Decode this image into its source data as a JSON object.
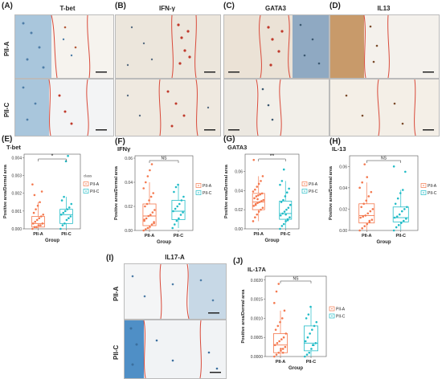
{
  "panels": {
    "A": {
      "letter": "(A)",
      "title": "T-bet"
    },
    "B": {
      "letter": "(B)",
      "title": "IFN-γ"
    },
    "C": {
      "letter": "(C)",
      "title": "GATA3"
    },
    "D": {
      "letter": "(D)",
      "title": "IL13"
    },
    "I": {
      "letter": "(I)",
      "title": "IL17-A"
    }
  },
  "row_labels": {
    "top": "PII-A",
    "bottom": "PII-C"
  },
  "legend_class_title": "class",
  "charts_text": {
    "E": {
      "letter": "(E)",
      "sig": "*"
    },
    "F": {
      "letter": "(F)",
      "sig": "NS"
    },
    "G": {
      "letter": "(G)",
      "sig": "**"
    },
    "H": {
      "letter": "(H)",
      "sig": "NS"
    },
    "J": {
      "letter": "(J)",
      "sig": "NS"
    }
  },
  "colors": {
    "pii_a": "#f4794f",
    "pii_c": "#22bcc7",
    "stain_red": "#d94a3a",
    "tissue_blue": "#7fa8c9",
    "tissue_brown": "#c89a6a"
  },
  "chart_data": [
    {
      "id": "E",
      "type": "box",
      "title": "T-bet",
      "xlabel": "Group",
      "ylabel": "Positive area/Dermal area",
      "categories": [
        "PII-A",
        "PII-C"
      ],
      "ylim": [
        0,
        0.0042
      ],
      "yticks": [
        0.0,
        0.001,
        0.002,
        0.003,
        0.004
      ],
      "ytick_labels": [
        "0.000",
        "0.001",
        "0.002",
        "0.003",
        "0.004"
      ],
      "legend": [
        "PII-A",
        "PII-C"
      ],
      "boxes": [
        {
          "name": "PII-A",
          "q1": 0.0001,
          "median": 0.0003,
          "q3": 0.0007,
          "whisker_low": 0.0,
          "whisker_high": 0.0015,
          "points": [
            0.0,
            0.0001,
            0.0001,
            0.0002,
            0.0002,
            0.0003,
            0.0003,
            0.0004,
            0.0005,
            0.0006,
            0.0007,
            0.0008,
            0.0009,
            0.0011,
            0.0013,
            0.0015,
            0.0021,
            0.0025,
            0.0019,
            0.0001
          ]
        },
        {
          "name": "PII-C",
          "q1": 0.0003,
          "median": 0.0008,
          "q3": 0.0011,
          "whisker_low": 0.0,
          "whisker_high": 0.0018,
          "points": [
            0.0,
            0.0002,
            0.0003,
            0.0005,
            0.0006,
            0.0007,
            0.0008,
            0.0009,
            0.001,
            0.0011,
            0.0012,
            0.0014,
            0.0016,
            0.0018,
            0.0038,
            0.0041
          ]
        }
      ]
    },
    {
      "id": "F",
      "type": "box",
      "title": "IFNγ",
      "xlabel": "Group",
      "ylabel": "Positive area/Dermal area",
      "categories": [
        "PII-A",
        "PII-C"
      ],
      "ylim": [
        0,
        0.062
      ],
      "yticks": [
        0.0,
        0.02,
        0.04,
        0.06
      ],
      "ytick_labels": [
        "0.00",
        "0.02",
        "0.04",
        "0.06"
      ],
      "legend": [
        "PII-A",
        "PII-C"
      ],
      "boxes": [
        {
          "name": "PII-A",
          "q1": 0.004,
          "median": 0.012,
          "q3": 0.022,
          "whisker_low": 0.0,
          "whisker_high": 0.04,
          "points": [
            0.0,
            0.001,
            0.002,
            0.003,
            0.005,
            0.007,
            0.008,
            0.01,
            0.012,
            0.013,
            0.015,
            0.017,
            0.02,
            0.022,
            0.025,
            0.028,
            0.031,
            0.035,
            0.04,
            0.045,
            0.05,
            0.055,
            0.006,
            0.009
          ]
        },
        {
          "name": "PII-C",
          "q1": 0.009,
          "median": 0.016,
          "q3": 0.025,
          "whisker_low": 0.002,
          "whisker_high": 0.038,
          "points": [
            0.002,
            0.005,
            0.008,
            0.01,
            0.013,
            0.015,
            0.016,
            0.018,
            0.02,
            0.022,
            0.025,
            0.028,
            0.032,
            0.036,
            0.038
          ]
        }
      ]
    },
    {
      "id": "G",
      "type": "box",
      "title": "GATA3",
      "xlabel": "Group",
      "ylabel": "Positive area/Dermal area",
      "categories": [
        "PII-A",
        "PII-C"
      ],
      "ylim": [
        0,
        0.078
      ],
      "yticks": [
        0.0,
        0.02,
        0.04,
        0.06
      ],
      "ytick_labels": [
        "0.00",
        "0.02",
        "0.04",
        "0.06"
      ],
      "legend": [
        "PII-A",
        "PII-C"
      ],
      "boxes": [
        {
          "name": "PII-A",
          "q1": 0.02,
          "median": 0.028,
          "q3": 0.037,
          "whisker_low": 0.008,
          "whisker_high": 0.055,
          "points": [
            0.008,
            0.012,
            0.015,
            0.018,
            0.02,
            0.022,
            0.024,
            0.026,
            0.027,
            0.028,
            0.029,
            0.03,
            0.032,
            0.034,
            0.035,
            0.036,
            0.037,
            0.039,
            0.041,
            0.044,
            0.047,
            0.05,
            0.055,
            0.072,
            0.025,
            0.031
          ]
        },
        {
          "name": "PII-C",
          "q1": 0.01,
          "median": 0.016,
          "q3": 0.029,
          "whisker_low": 0.0,
          "whisker_high": 0.05,
          "points": [
            0.0,
            0.003,
            0.005,
            0.008,
            0.01,
            0.012,
            0.014,
            0.016,
            0.018,
            0.02,
            0.022,
            0.025,
            0.028,
            0.03,
            0.034,
            0.038,
            0.042,
            0.046,
            0.05,
            0.062,
            0.015,
            0.009
          ]
        }
      ]
    },
    {
      "id": "H",
      "type": "box",
      "title": "IL-13",
      "xlabel": "Group",
      "ylabel": "Positive area/Dermal area",
      "categories": [
        "PII-A",
        "PII-C"
      ],
      "ylim": [
        0,
        0.07
      ],
      "yticks": [
        0.0,
        0.02,
        0.04,
        0.06
      ],
      "ytick_labels": [
        "0.00",
        "0.02",
        "0.04",
        "0.06"
      ],
      "legend": [
        "PII-A",
        "PII-C"
      ],
      "boxes": [
        {
          "name": "PII-A",
          "q1": 0.007,
          "median": 0.014,
          "q3": 0.025,
          "whisker_low": 0.0,
          "whisker_high": 0.045,
          "points": [
            0.0,
            0.002,
            0.004,
            0.006,
            0.008,
            0.01,
            0.012,
            0.013,
            0.014,
            0.016,
            0.018,
            0.02,
            0.022,
            0.025,
            0.028,
            0.032,
            0.036,
            0.04,
            0.045,
            0.062,
            0.05,
            0.009
          ]
        },
        {
          "name": "PII-C",
          "q1": 0.008,
          "median": 0.012,
          "q3": 0.022,
          "whisker_low": 0.0,
          "whisker_high": 0.038,
          "points": [
            0.0,
            0.003,
            0.005,
            0.007,
            0.009,
            0.011,
            0.012,
            0.013,
            0.015,
            0.018,
            0.02,
            0.022,
            0.025,
            0.03,
            0.035,
            0.038,
            0.055,
            0.06
          ]
        }
      ]
    },
    {
      "id": "J",
      "type": "box",
      "title": "IL-17A",
      "xlabel": "Group",
      "ylabel": "Positive area/Dermal area",
      "categories": [
        "PII-A",
        "PII-C"
      ],
      "ylim": [
        0,
        0.0021
      ],
      "yticks": [
        0.0,
        0.0005,
        0.001,
        0.0015,
        0.002
      ],
      "ytick_labels": [
        "0.0000",
        "0.0005",
        "0.0010",
        "0.0015",
        "0.0020"
      ],
      "legend": [
        "PII-A",
        "PII-C"
      ],
      "boxes": [
        {
          "name": "PII-A",
          "q1": 0.0001,
          "median": 0.0003,
          "q3": 0.0006,
          "whisker_low": 0.0,
          "whisker_high": 0.0012,
          "points": [
            0.0,
            5e-05,
            0.0001,
            0.00015,
            0.0002,
            0.00025,
            0.0003,
            0.00035,
            0.0004,
            0.00045,
            0.0005,
            0.0006,
            0.0007,
            0.0008,
            0.0009,
            0.001,
            0.0012,
            0.0014,
            0.0017,
            0.0019,
            0.0002,
            0.0001
          ]
        },
        {
          "name": "PII-C",
          "q1": 0.00015,
          "median": 0.00035,
          "q3": 0.0008,
          "whisker_low": 0.0,
          "whisker_high": 0.0013,
          "points": [
            0.0,
            5e-05,
            0.0001,
            0.0002,
            0.0003,
            0.00035,
            0.0004,
            0.0005,
            0.0006,
            0.0007,
            0.0008,
            0.0009,
            0.001,
            0.0011,
            0.0013,
            0.0003
          ]
        }
      ]
    }
  ]
}
